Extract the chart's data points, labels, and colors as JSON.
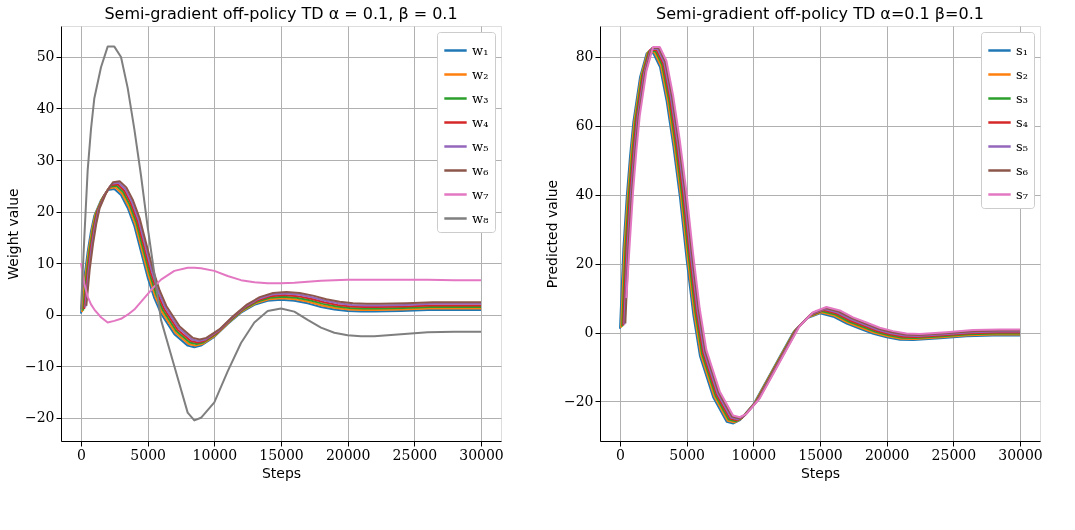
{
  "chart_data": [
    {
      "type": "line",
      "title": "Semi-gradient off-policy TD α = 0.1,  β = 0.1",
      "xlabel": "Steps",
      "ylabel": "Weight value",
      "x": [
        0,
        250,
        500,
        750,
        1000,
        1500,
        2000,
        2500,
        3000,
        3500,
        4000,
        4500,
        5000,
        5500,
        6000,
        7000,
        8000,
        8500,
        9000,
        10000,
        11000,
        12000,
        13000,
        14000,
        15000,
        16000,
        17000,
        18000,
        19000,
        20000,
        21000,
        22000,
        24000,
        26000,
        28000,
        30000
      ],
      "series": [
        {
          "name": "w₁",
          "color": "#1f77b4",
          "values": [
            0.2,
            7.2,
            12.2,
            16.2,
            19.2,
            22.2,
            24.2,
            24.4,
            23.2,
            20.7,
            17.2,
            12.2,
            7.2,
            3.2,
            0.2,
            -3.8,
            -6,
            -6.3,
            -6,
            -4.3,
            -1.8,
            0.4,
            1.9,
            2.7,
            2.9,
            2.7,
            2.2,
            1.5,
            1,
            0.7,
            0.6,
            0.6,
            0.7,
            0.9,
            0.9,
            0.9
          ]
        },
        {
          "name": "w₂",
          "color": "#ff7f0e",
          "x": [
            80,
            330,
            580,
            830,
            1080,
            1580,
            2080,
            2580,
            3080,
            3580,
            4080,
            4580,
            5080,
            5580,
            6080,
            7080,
            8080,
            8580,
            9080,
            10080,
            11080,
            12080,
            13080,
            14080,
            15080,
            16080,
            17080,
            18080,
            19080,
            20080,
            21080,
            22080,
            24080,
            26080,
            28080,
            30000
          ],
          "values": [
            0.5,
            7.5,
            12.5,
            16.5,
            19.5,
            22.5,
            24.5,
            24.7,
            23.5,
            21,
            17.5,
            12.5,
            7.5,
            3.5,
            0.5,
            -3.5,
            -5.7,
            -6,
            -5.7,
            -4,
            -1.5,
            0.7,
            2.2,
            3,
            3.2,
            3,
            2.5,
            1.8,
            1.3,
            1,
            0.9,
            0.9,
            1,
            1.2,
            1.2,
            1.2
          ]
        },
        {
          "name": "w₃",
          "color": "#2ca02c",
          "x": [
            160,
            410,
            660,
            910,
            1160,
            1660,
            2160,
            2660,
            3160,
            3660,
            4160,
            4660,
            5160,
            5660,
            6160,
            7160,
            8160,
            8660,
            9160,
            10160,
            11160,
            12160,
            13160,
            14160,
            15160,
            16160,
            17160,
            18160,
            19160,
            20160,
            21160,
            22160,
            24160,
            26160,
            28160,
            30000
          ],
          "values": [
            0.8,
            7.8,
            12.8,
            16.8,
            19.8,
            22.8,
            24.8,
            25,
            23.8,
            21.3,
            17.8,
            12.8,
            7.8,
            3.8,
            0.8,
            -3.2,
            -5.4,
            -5.7,
            -5.4,
            -3.7,
            -1.2,
            1,
            2.5,
            3.3,
            3.5,
            3.3,
            2.8,
            2.1,
            1.6,
            1.3,
            1.2,
            1.2,
            1.3,
            1.5,
            1.5,
            1.5
          ]
        },
        {
          "name": "w₄",
          "color": "#d62728",
          "x": [
            240,
            490,
            740,
            990,
            1240,
            1740,
            2240,
            2740,
            3240,
            3740,
            4240,
            4740,
            5240,
            5740,
            6240,
            7240,
            8240,
            8740,
            9240,
            10240,
            11240,
            12240,
            13240,
            14240,
            15240,
            16240,
            17240,
            18240,
            19240,
            20240,
            21240,
            22240,
            24240,
            26240,
            28240,
            30000
          ],
          "values": [
            1.1,
            8.1,
            13.1,
            17.1,
            20.1,
            23.1,
            25.1,
            25.3,
            24.1,
            21.6,
            18.1,
            13.1,
            8.1,
            4.1,
            1.1,
            -2.9,
            -5.1,
            -5.4,
            -5.1,
            -3.4,
            -0.9,
            1.3,
            2.8,
            3.6,
            3.8,
            3.6,
            3.1,
            2.4,
            1.9,
            1.6,
            1.5,
            1.5,
            1.6,
            1.8,
            1.8,
            1.8
          ]
        },
        {
          "name": "w₅",
          "color": "#9467bd",
          "x": [
            320,
            570,
            820,
            1070,
            1320,
            1820,
            2320,
            2820,
            3320,
            3820,
            4320,
            4820,
            5320,
            5820,
            6320,
            7320,
            8320,
            8820,
            9320,
            10320,
            11320,
            12320,
            13320,
            14320,
            15320,
            16320,
            17320,
            18320,
            19320,
            20320,
            21320,
            22320,
            24320,
            26320,
            28320,
            30000
          ],
          "values": [
            1.4,
            8.4,
            13.4,
            17.4,
            20.4,
            23.4,
            25.4,
            25.6,
            24.4,
            21.9,
            18.4,
            13.4,
            8.4,
            4.4,
            1.4,
            -2.6,
            -4.8,
            -5.1,
            -4.8,
            -3.1,
            -0.6,
            1.6,
            3.1,
            3.9,
            4.1,
            3.9,
            3.4,
            2.7,
            2.2,
            1.9,
            1.8,
            1.8,
            1.9,
            2.1,
            2.1,
            2.1
          ]
        },
        {
          "name": "w₆",
          "color": "#8c564b",
          "x": [
            400,
            650,
            900,
            1150,
            1400,
            1900,
            2400,
            2900,
            3400,
            3900,
            4400,
            4900,
            5400,
            5900,
            6400,
            7400,
            8400,
            8900,
            9400,
            10400,
            11400,
            12400,
            13400,
            14400,
            15400,
            16400,
            17400,
            18400,
            19400,
            20400,
            21400,
            22400,
            24400,
            26400,
            28400,
            30000
          ],
          "values": [
            1.7,
            8.7,
            13.7,
            17.7,
            20.7,
            23.7,
            25.7,
            25.9,
            24.7,
            22.2,
            18.7,
            13.7,
            8.7,
            4.7,
            1.7,
            -2.3,
            -4.5,
            -4.8,
            -4.5,
            -2.8,
            -0.3,
            1.9,
            3.4,
            4.2,
            4.4,
            4.2,
            3.7,
            3,
            2.5,
            2.2,
            2.1,
            2.1,
            2.2,
            2.4,
            2.4,
            2.4
          ]
        },
        {
          "name": "w₇",
          "color": "#e377c2",
          "values": [
            10,
            6,
            3.5,
            2,
            1,
            -0.5,
            -1.5,
            -1.2,
            -0.8,
            0,
            1,
            2.5,
            4,
            5.5,
            6.8,
            8.5,
            9.1,
            9.1,
            9,
            8.5,
            7.5,
            6.7,
            6.3,
            6.1,
            6.1,
            6.2,
            6.4,
            6.6,
            6.7,
            6.8,
            6.8,
            6.8,
            6.8,
            6.8,
            6.7,
            6.7
          ]
        },
        {
          "name": "w₈",
          "color": "#7f7f7f",
          "values": [
            1,
            15,
            28,
            36,
            42,
            48,
            52,
            52,
            50,
            44,
            36,
            27,
            17,
            8,
            -1,
            -10,
            -19,
            -20.5,
            -20,
            -17,
            -11,
            -5.5,
            -1.5,
            0.7,
            1.2,
            0.6,
            -1,
            -2.5,
            -3.5,
            -4,
            -4.2,
            -4.2,
            -3.8,
            -3.4,
            -3.3,
            -3.3
          ]
        }
      ],
      "xlim": [
        -1500,
        31500
      ],
      "ylim": [
        -24.5,
        56
      ],
      "xticks": [
        0,
        5000,
        10000,
        15000,
        20000,
        25000,
        30000
      ],
      "yticks": [
        {
          "value": -20,
          "label": "−20"
        },
        {
          "value": -10,
          "label": "−10"
        },
        0,
        10,
        20,
        30,
        40,
        50
      ],
      "grid": true,
      "legend": "top right"
    },
    {
      "type": "line",
      "title": "Semi-gradient off-policy TD α=0.1 β=0.1",
      "xlabel": "Steps",
      "ylabel": "Predicted value",
      "x": [
        0,
        250,
        500,
        750,
        1000,
        1500,
        2000,
        2500,
        3000,
        3500,
        4000,
        4500,
        5000,
        5500,
        6000,
        7000,
        8000,
        8500,
        9000,
        10000,
        11000,
        12000,
        13000,
        14000,
        15000,
        16000,
        17000,
        18000,
        19000,
        20000,
        21000,
        22000,
        24000,
        26000,
        28000,
        30000
      ],
      "series": [
        {
          "name": "s₁",
          "color": "#1f77b4",
          "values": [
            1.1,
            24.1,
            39.1,
            51.1,
            61.1,
            74.1,
            81.1,
            81.1,
            77.1,
            67.1,
            54.1,
            39.1,
            21.1,
            5.1,
            -6.9,
            -18.9,
            -25.9,
            -26.4,
            -25.4,
            -20.9,
            -13.9,
            -6.9,
            0.1,
            4.1,
            5.6,
            4.6,
            2.6,
            1.1,
            -0.4,
            -1.4,
            -2.1,
            -2.2,
            -1.7,
            -1.1,
            -0.9,
            -0.9
          ]
        },
        {
          "name": "s₂",
          "color": "#ff7f0e",
          "x": [
            80,
            330,
            580,
            830,
            1080,
            1580,
            2080,
            2580,
            3080,
            3580,
            4080,
            4580,
            5080,
            5580,
            6080,
            7080,
            8080,
            8580,
            9080,
            10080,
            11080,
            12080,
            13080,
            14080,
            15080,
            16080,
            17080,
            18080,
            19080,
            20080,
            21080,
            22080,
            24080,
            26080,
            28080,
            30000
          ],
          "values": [
            1.4,
            24.4,
            39.4,
            51.4,
            61.4,
            74.4,
            81.4,
            81.4,
            77.4,
            67.4,
            54.4,
            39.4,
            21.4,
            5.4,
            -6.6,
            -18.6,
            -25.6,
            -26.1,
            -25.1,
            -20.6,
            -13.6,
            -6.6,
            0.4,
            4.4,
            5.9,
            4.9,
            2.9,
            1.4,
            -0.1,
            -1.1,
            -1.8,
            -1.9,
            -1.4,
            -0.8,
            -0.6,
            -0.6
          ]
        },
        {
          "name": "s₃",
          "color": "#2ca02c",
          "x": [
            160,
            410,
            660,
            910,
            1160,
            1660,
            2160,
            2660,
            3160,
            3660,
            4160,
            4660,
            5160,
            5660,
            6160,
            7160,
            8160,
            8660,
            9160,
            10160,
            11160,
            12160,
            13160,
            14160,
            15160,
            16160,
            17160,
            18160,
            19160,
            20160,
            21160,
            22160,
            24160,
            26160,
            28160,
            30000
          ],
          "values": [
            1.7,
            24.7,
            39.7,
            51.7,
            61.7,
            74.7,
            81.7,
            81.7,
            77.7,
            67.7,
            54.7,
            39.7,
            21.7,
            5.7,
            -6.3,
            -18.3,
            -25.3,
            -25.8,
            -24.8,
            -20.3,
            -13.3,
            -6.3,
            0.7,
            4.7,
            6.2,
            5.2,
            3.2,
            1.7,
            0.2,
            -0.8,
            -1.5,
            -1.6,
            -1.1,
            -0.5,
            -0.3,
            -0.3
          ]
        },
        {
          "name": "s₄",
          "color": "#d62728",
          "x": [
            240,
            490,
            740,
            990,
            1240,
            1740,
            2240,
            2740,
            3240,
            3740,
            4240,
            4740,
            5240,
            5740,
            6240,
            7240,
            8240,
            8740,
            9240,
            10240,
            11240,
            12240,
            13240,
            14240,
            15240,
            16240,
            17240,
            18240,
            19240,
            20240,
            21240,
            22240,
            24240,
            26240,
            28240,
            30000
          ],
          "values": [
            2,
            25,
            40,
            52,
            62,
            75,
            82,
            82,
            78,
            68,
            55,
            40,
            22,
            6,
            -6,
            -18,
            -25,
            -25.5,
            -24.5,
            -20,
            -13,
            -6,
            1,
            5,
            6.5,
            5.5,
            3.5,
            2,
            0.5,
            -0.5,
            -1.2,
            -1.3,
            -0.8,
            -0.2,
            0,
            0
          ]
        },
        {
          "name": "s₅",
          "color": "#9467bd",
          "x": [
            320,
            570,
            820,
            1070,
            1320,
            1820,
            2320,
            2820,
            3320,
            3820,
            4320,
            4820,
            5320,
            5820,
            6320,
            7320,
            8320,
            8820,
            9320,
            10320,
            11320,
            12320,
            13320,
            14320,
            15320,
            16320,
            17320,
            18320,
            19320,
            20320,
            21320,
            22320,
            24320,
            26320,
            28320,
            30000
          ],
          "values": [
            2.3,
            25.3,
            40.3,
            52.3,
            62.3,
            75.3,
            82.3,
            82.3,
            78.3,
            68.3,
            55.3,
            40.3,
            22.3,
            6.3,
            -5.7,
            -17.7,
            -24.7,
            -25.2,
            -24.2,
            -19.7,
            -12.7,
            -5.7,
            1.3,
            5.3,
            6.8,
            5.8,
            3.8,
            2.3,
            0.8,
            -0.2,
            -0.9,
            -1,
            -0.5,
            0.1,
            0.3,
            0.3
          ]
        },
        {
          "name": "s₆",
          "color": "#8c564b",
          "x": [
            400,
            650,
            900,
            1150,
            1400,
            1900,
            2400,
            2900,
            3400,
            3900,
            4400,
            4900,
            5400,
            5900,
            6400,
            7400,
            8400,
            8900,
            9400,
            10400,
            11400,
            12400,
            13400,
            14400,
            15400,
            16400,
            17400,
            18400,
            19400,
            20400,
            21400,
            22400,
            24400,
            26400,
            28400,
            30000
          ],
          "values": [
            2.6,
            25.6,
            40.6,
            52.6,
            62.6,
            75.6,
            82.6,
            82.6,
            78.6,
            68.6,
            55.6,
            40.6,
            22.6,
            6.6,
            -5.4,
            -17.4,
            -24.4,
            -24.9,
            -23.9,
            -19.4,
            -12.4,
            -5.4,
            1.6,
            5.6,
            7.1,
            6.1,
            4.1,
            2.6,
            1.1,
            0.1,
            -0.6,
            -0.7,
            -0.2,
            0.4,
            0.6,
            0.6
          ]
        },
        {
          "name": "s₇",
          "color": "#e377c2",
          "x": [
            480,
            730,
            980,
            1230,
            1480,
            1980,
            2480,
            2980,
            3480,
            3980,
            4480,
            4980,
            5480,
            5980,
            6480,
            7480,
            8480,
            8980,
            9480,
            10480,
            11480,
            12480,
            13480,
            14480,
            15480,
            16480,
            17480,
            18480,
            19480,
            20480,
            21480,
            22480,
            24480,
            26480,
            28480,
            30000
          ],
          "values": [
            10,
            25.9,
            40.9,
            52.9,
            62.9,
            75.9,
            82.9,
            82.9,
            78.9,
            68.9,
            55.9,
            40.9,
            22.9,
            6.9,
            -5.1,
            -17.1,
            -24.1,
            -24.6,
            -23.6,
            -19.1,
            -12.1,
            -5.1,
            1.9,
            5.9,
            7.4,
            6.4,
            4.4,
            2.9,
            1.4,
            0.4,
            -0.3,
            -0.4,
            0.1,
            0.7,
            0.9,
            0.9
          ]
        }
      ],
      "xlim": [
        -1500,
        31500
      ],
      "ylim": [
        -31.5,
        89
      ],
      "xticks": [
        0,
        5000,
        10000,
        15000,
        20000,
        25000,
        30000
      ],
      "yticks": [
        {
          "value": -20,
          "label": "−20"
        },
        0,
        20,
        40,
        60,
        80
      ],
      "grid": true,
      "legend": "top right"
    }
  ]
}
